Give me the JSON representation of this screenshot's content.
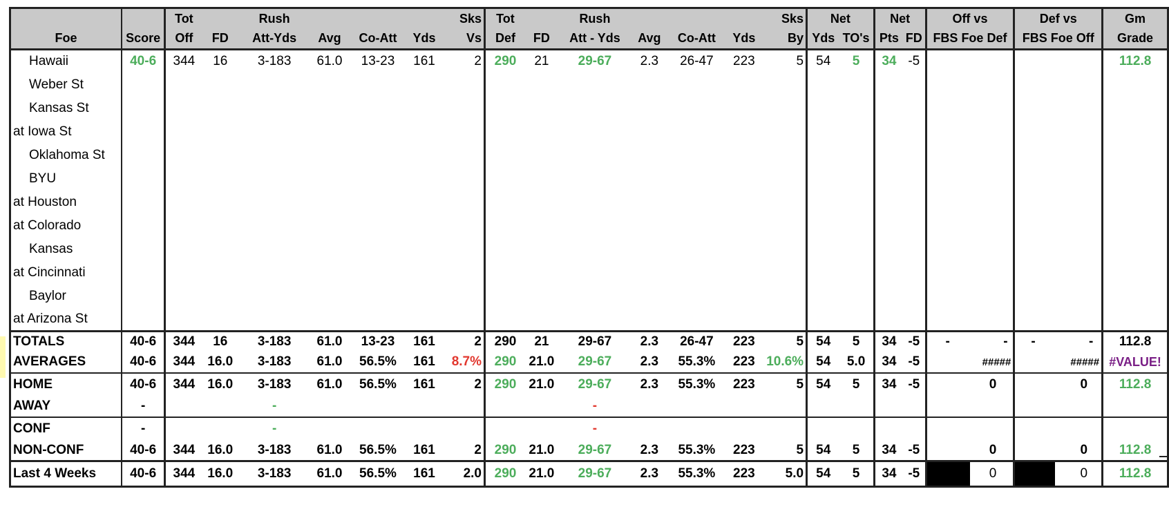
{
  "header": {
    "row1": [
      "",
      "",
      "Tot",
      "",
      "Rush",
      "",
      "",
      "",
      "Sks",
      "Tot",
      "",
      "Rush",
      "",
      "",
      "",
      "Sks",
      "Net",
      "",
      "Net",
      "",
      "Off vs",
      "Def vs",
      "Gm"
    ],
    "row2": [
      "Foe",
      "Score",
      "Off",
      "FD",
      "Att-Yds",
      "Avg",
      "Co-Att",
      "Yds",
      "Vs",
      "Def",
      "FD",
      "Att - Yds",
      "Avg",
      "Co-Att",
      "Yds",
      "By",
      "Yds",
      "TO's",
      "Pts",
      "FD",
      "FBS Foe Def",
      "FBS Foe Off",
      "Grade"
    ]
  },
  "games": [
    {
      "foe": "Hawaii",
      "score": "40-6",
      "tot_off": "344",
      "fd": "16",
      "rush": "3-183",
      "avg": "61.0",
      "co_att": "13-23",
      "yds": "161",
      "sks_vs": "2",
      "tot_def": "290",
      "def_fd": "21",
      "def_rush": "29-67",
      "def_avg": "2.3",
      "def_co_att": "26-47",
      "def_yds": "223",
      "sks_by": "5",
      "net_yds": "54",
      "net_to": "5",
      "net_pts": "34",
      "net_fd": "-5",
      "off_vs": "",
      "def_vs": "",
      "grade": "112.8"
    },
    {
      "foe": "Weber St"
    },
    {
      "foe": "Kansas St"
    },
    {
      "foe": "at Iowa St"
    },
    {
      "foe": "Oklahoma St"
    },
    {
      "foe": "BYU"
    },
    {
      "foe": "at Houston"
    },
    {
      "foe": "at Colorado"
    },
    {
      "foe": "Kansas"
    },
    {
      "foe": "at Cincinnati"
    },
    {
      "foe": "Baylor"
    },
    {
      "foe": "at Arizona St"
    }
  ],
  "summary": [
    {
      "label": "TOTALS",
      "score": "40-6",
      "tot_off": "344",
      "fd": "16",
      "rush": "3-183",
      "avg": "61.0",
      "co_att": "13-23",
      "yds": "161",
      "sks_vs": "2",
      "tot_def": "290",
      "def_fd": "21",
      "def_rush": "29-67",
      "def_avg": "2.3",
      "def_co_att": "26-47",
      "def_yds": "223",
      "sks_by": "5",
      "net_yds": "54",
      "net_to": "5",
      "net_pts": "34",
      "net_fd": "-5",
      "off_vs_a": "-",
      "off_vs_b": "-",
      "def_vs_a": "-",
      "def_vs_b": "-",
      "grade": "112.8"
    },
    {
      "label": "AVERAGES",
      "score": "40-6",
      "tot_off": "344",
      "fd": "16.0",
      "rush": "3-183",
      "avg": "61.0",
      "co_att": "56.5%",
      "yds": "161",
      "sks_vs": "8.7%",
      "tot_def": "290",
      "def_fd": "21.0",
      "def_rush": "29-67",
      "def_avg": "2.3",
      "def_co_att": "55.3%",
      "def_yds": "223",
      "sks_by": "10.6%",
      "net_yds": "54",
      "net_to": "5.0",
      "net_pts": "34",
      "net_fd": "-5",
      "off_vs": "#####",
      "def_vs": "#####",
      "grade": "#VALUE!"
    },
    {
      "label": "HOME",
      "score": "40-6",
      "tot_off": "344",
      "fd": "16.0",
      "rush": "3-183",
      "avg": "61.0",
      "co_att": "56.5%",
      "yds": "161",
      "sks_vs": "2",
      "tot_def": "290",
      "def_fd": "21.0",
      "def_rush": "29-67",
      "def_avg": "2.3",
      "def_co_att": "55.3%",
      "def_yds": "223",
      "sks_by": "5",
      "net_yds": "54",
      "net_to": "5",
      "net_pts": "34",
      "net_fd": "-5",
      "off_vs": "0",
      "def_vs": "0",
      "grade": "112.8"
    },
    {
      "label": "AWAY",
      "score": "-",
      "rush": "-",
      "def_rush": "-"
    },
    {
      "label": "CONF",
      "score": "-",
      "rush": "-",
      "def_rush": "-"
    },
    {
      "label": "NON-CONF",
      "score": "40-6",
      "tot_off": "344",
      "fd": "16.0",
      "rush": "3-183",
      "avg": "61.0",
      "co_att": "56.5%",
      "yds": "161",
      "sks_vs": "2",
      "tot_def": "290",
      "def_fd": "21.0",
      "def_rush": "29-67",
      "def_avg": "2.3",
      "def_co_att": "55.3%",
      "def_yds": "223",
      "sks_by": "5",
      "net_yds": "54",
      "net_to": "5",
      "net_pts": "34",
      "net_fd": "-5",
      "off_vs": "0",
      "def_vs": "0",
      "grade": "112.8"
    },
    {
      "label": "Last 4 Weeks",
      "score": "40-6",
      "tot_off": "344",
      "fd": "16.0",
      "rush": "3-183",
      "avg": "61.0",
      "co_att": "56.5%",
      "yds": "161",
      "sks_vs": "2.0",
      "tot_def": "290",
      "def_fd": "21.0",
      "def_rush": "29-67",
      "def_avg": "2.3",
      "def_co_att": "55.3%",
      "def_yds": "223",
      "sks_by": "5.0",
      "net_yds": "54",
      "net_to": "5",
      "net_pts": "34",
      "net_fd": "-5",
      "off_vs": "0",
      "def_vs": "0",
      "grade": "112.8"
    }
  ],
  "colors": {
    "good": "#4cad5b",
    "bad": "#e2382f",
    "error": "#7a1f86",
    "header_bg": "#c9c9c9",
    "highlight": "#fff9b0"
  }
}
